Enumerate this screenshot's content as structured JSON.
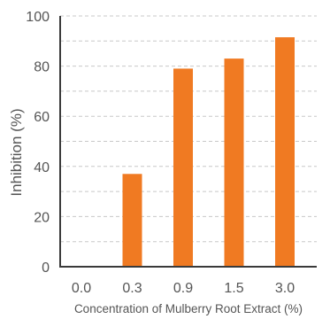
{
  "chart_data": {
    "type": "bar",
    "categories": [
      "0.0",
      "0.3",
      "0.9",
      "1.5",
      "3.0"
    ],
    "values": [
      0,
      37,
      79,
      83,
      91.5
    ],
    "title": "",
    "xlabel": "Concentration of Mulberry Root Extract (%)",
    "ylabel": "Inhibition (%)",
    "ylim": [
      0,
      100
    ],
    "yticks": [
      0,
      20,
      40,
      60,
      80,
      100
    ],
    "grid": "dashed horizontal",
    "bar_color": "#f07a22",
    "grid_color": "#c8c8c8",
    "axis_color": "#3a3a3a",
    "text_color": "#555555"
  }
}
